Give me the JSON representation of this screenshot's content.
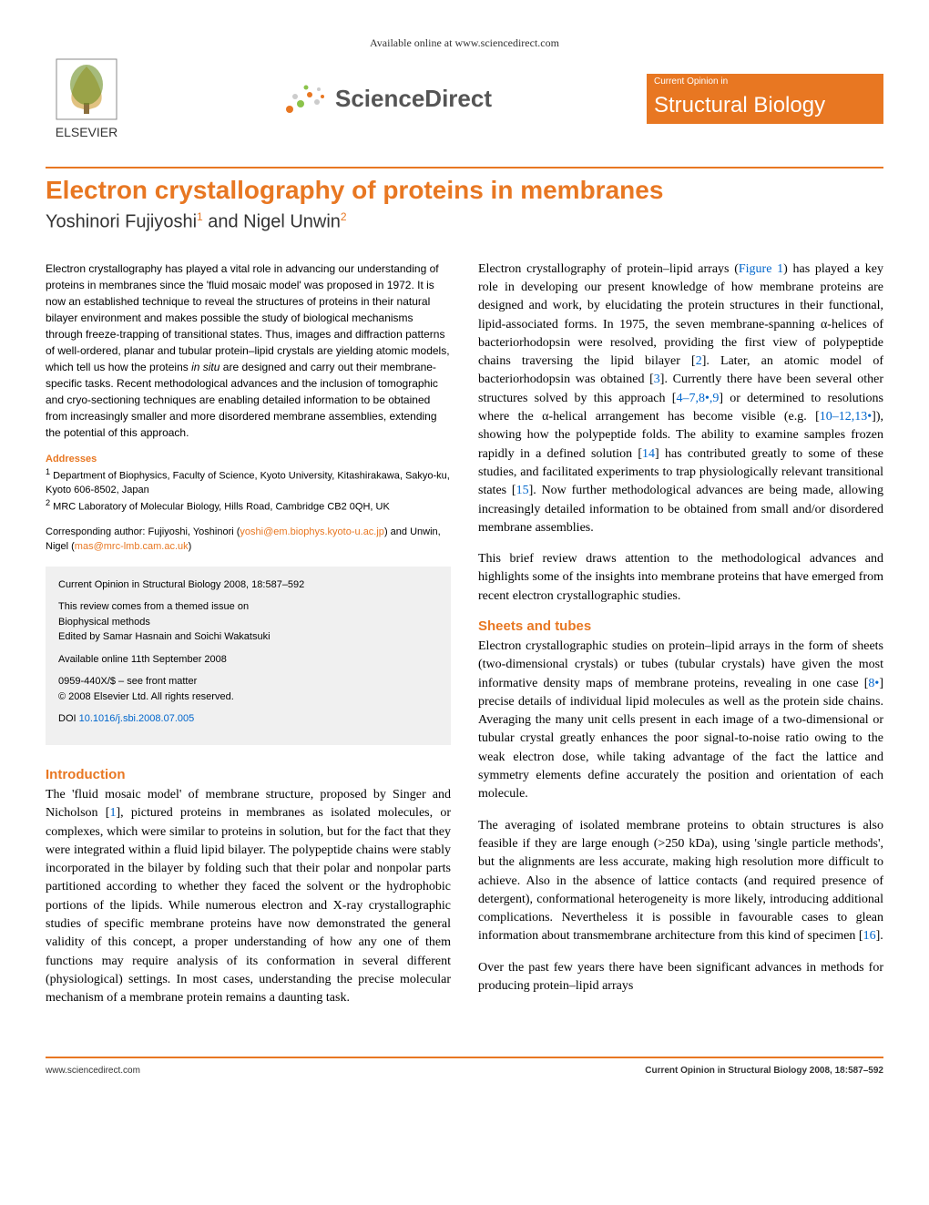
{
  "header": {
    "available_online": "Available online at www.sciencedirect.com",
    "publisher": "ELSEVIER",
    "sciencedirect": "ScienceDirect",
    "journal_top": "Current Opinion in",
    "journal_name": "Structural Biology"
  },
  "colors": {
    "accent": "#e87722",
    "link": "#0066cc",
    "grey_box": "#f0f0f0",
    "text": "#000000"
  },
  "article": {
    "title": "Electron crystallography of proteins in membranes",
    "authors_html": "Yoshinori Fujiyoshi<sup>1</sup> and Nigel Unwin<sup>2</sup>"
  },
  "abstract": "Electron crystallography has played a vital role in advancing our understanding of proteins in membranes since the 'fluid mosaic model' was proposed in 1972. It is now an established technique to reveal the structures of proteins in their natural bilayer environment and makes possible the study of biological mechanisms through freeze-trapping of transitional states. Thus, images and diffraction patterns of well-ordered, planar and tubular protein–lipid crystals are yielding atomic models, which tell us how the proteins <em>in situ</em> are designed and carry out their membrane-specific tasks. Recent methodological advances and the inclusion of tomographic and cryo-sectioning techniques are enabling detailed information to be obtained from increasingly smaller and more disordered membrane assemblies, extending the potential of this approach.",
  "addresses": {
    "label": "Addresses",
    "items": [
      "<sup>1</sup> Department of Biophysics, Faculty of Science, Kyoto University, Kitashirakawa, Sakyo-ku, Kyoto 606-8502, Japan",
      "<sup>2</sup> MRC Laboratory of Molecular Biology, Hills Road, Cambridge CB2 0QH, UK"
    ]
  },
  "corresponding": "Corresponding author: Fujiyoshi, Yoshinori (<a>yoshi@em.biophys.kyoto-u.ac.jp</a>) and Unwin, Nigel (<a>mas@mrc-lmb.cam.ac.uk</a>)",
  "infobox": {
    "citation": "Current Opinion in Structural Biology 2008, 18:587–592",
    "themed": "This review comes from a themed issue on",
    "theme": "Biophysical methods",
    "editors": "Edited by Samar Hasnain and Soichi Wakatsuki",
    "available": "Available online 11th September 2008",
    "issn": "0959-440X/$ – see front matter",
    "copyright": "© 2008 Elsevier Ltd. All rights reserved.",
    "doi_label": "DOI",
    "doi": "10.1016/j.sbi.2008.07.005"
  },
  "sections": {
    "introduction": {
      "heading": "Introduction",
      "p1": "The 'fluid mosaic model' of membrane structure, proposed by Singer and Nicholson [<a class=\"ref-link\">1</a>], pictured proteins in membranes as isolated molecules, or complexes, which were similar to proteins in solution, but for the fact that they were integrated within a fluid lipid bilayer. The polypeptide chains were stably incorporated in the bilayer by folding such that their polar and nonpolar parts partitioned according to whether they faced the solvent or the hydrophobic portions of the lipids. While numerous electron and X-ray crystallographic studies of specific membrane proteins have now demonstrated the general validity of this concept, a proper understanding of how any one of them functions may require analysis of its conformation in several different (physiological) settings. In most cases, understanding the precise molecular mechanism of a membrane protein remains a daunting task.",
      "p2": "Electron crystallography of protein–lipid arrays (<a class=\"ref-link\">Figure 1</a>) has played a key role in developing our present knowledge of how membrane proteins are designed and work, by elucidating the protein structures in their functional, lipid-associated forms. In 1975, the seven membrane-spanning α-helices of bacteriorhodopsin were resolved, providing the first view of polypeptide chains traversing the lipid bilayer [<a class=\"ref-link\">2</a>]. Later, an atomic model of bacteriorhodopsin was obtained [<a class=\"ref-link\">3</a>]. Currently there have been several other structures solved by this approach [<a class=\"ref-link\">4–7,8•,9</a>] or determined to resolutions where the α-helical arrangement has become visible (e.g. [<a class=\"ref-link\">10–12,13•</a>]), showing how the polypeptide folds. The ability to examine samples frozen rapidly in a defined solution [<a class=\"ref-link\">14</a>] has contributed greatly to some of these studies, and facilitated experiments to trap physiologically relevant transitional states [<a class=\"ref-link\">15</a>]. Now further methodological advances are being made, allowing increasingly detailed information to be obtained from small and/or disordered membrane assemblies.",
      "p3": "This brief review draws attention to the methodological advances and highlights some of the insights into membrane proteins that have emerged from recent electron crystallographic studies."
    },
    "sheets": {
      "heading": "Sheets and tubes",
      "p1": "Electron crystallographic studies on protein–lipid arrays in the form of sheets (two-dimensional crystals) or tubes (tubular crystals) have given the most informative density maps of membrane proteins, revealing in one case [<a class=\"ref-link\">8•</a>] precise details of individual lipid molecules as well as the protein side chains. Averaging the many unit cells present in each image of a two-dimensional or tubular crystal greatly enhances the poor signal-to-noise ratio owing to the weak electron dose, while taking advantage of the fact the lattice and symmetry elements define accurately the position and orientation of each molecule.",
      "p2": "The averaging of isolated membrane proteins to obtain structures is also feasible if they are large enough (>250 kDa), using 'single particle methods', but the alignments are less accurate, making high resolution more difficult to achieve. Also in the absence of lattice contacts (and required presence of detergent), conformational heterogeneity is more likely, introducing additional complications. Nevertheless it is possible in favourable cases to glean information about transmembrane architecture from this kind of specimen [<a class=\"ref-link\">16</a>].",
      "p3": "Over the past few years there have been significant advances in methods for producing protein–lipid arrays"
    }
  },
  "footer": {
    "left": "www.sciencedirect.com",
    "right": "Current Opinion in Structural Biology 2008, 18:587–592"
  }
}
